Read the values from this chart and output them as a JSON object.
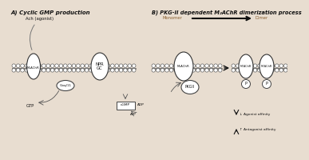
{
  "title_a": "A) Cyclic GMP production",
  "title_b": "B) PKG-II dependent M₂AChR dimerization process",
  "label_ach": "Ach (agonist)",
  "label_m2achr_a": "M₂AChR",
  "label_npr_gc": "NPR\nGC",
  "label_gq": "Gαq/11",
  "label_gtp": "GTP",
  "label_cgmp": "cGMP",
  "label_adp": "ADP",
  "label_atp": "ATP",
  "label_pkgii": "PKGII",
  "label_monomer": "Monomer",
  "label_dimer": "Dimer",
  "label_m2achr_b1": "M₂AChR",
  "label_m2achr_b2": "M₂AChR",
  "label_m2achr_b3": "M₂AChR",
  "label_agonist_down": "↓ Agonist affinity",
  "label_antagonist_up": "↑ Antagonist affinity",
  "label_p1": "P",
  "label_p2": "P",
  "bg_color": "#e8ddd0",
  "text_color": "#111111",
  "mono_text_color": "#8B6030",
  "membrane_ec": "#555555",
  "receptor_ec": "#333333",
  "bead_fc": "#ffffff"
}
